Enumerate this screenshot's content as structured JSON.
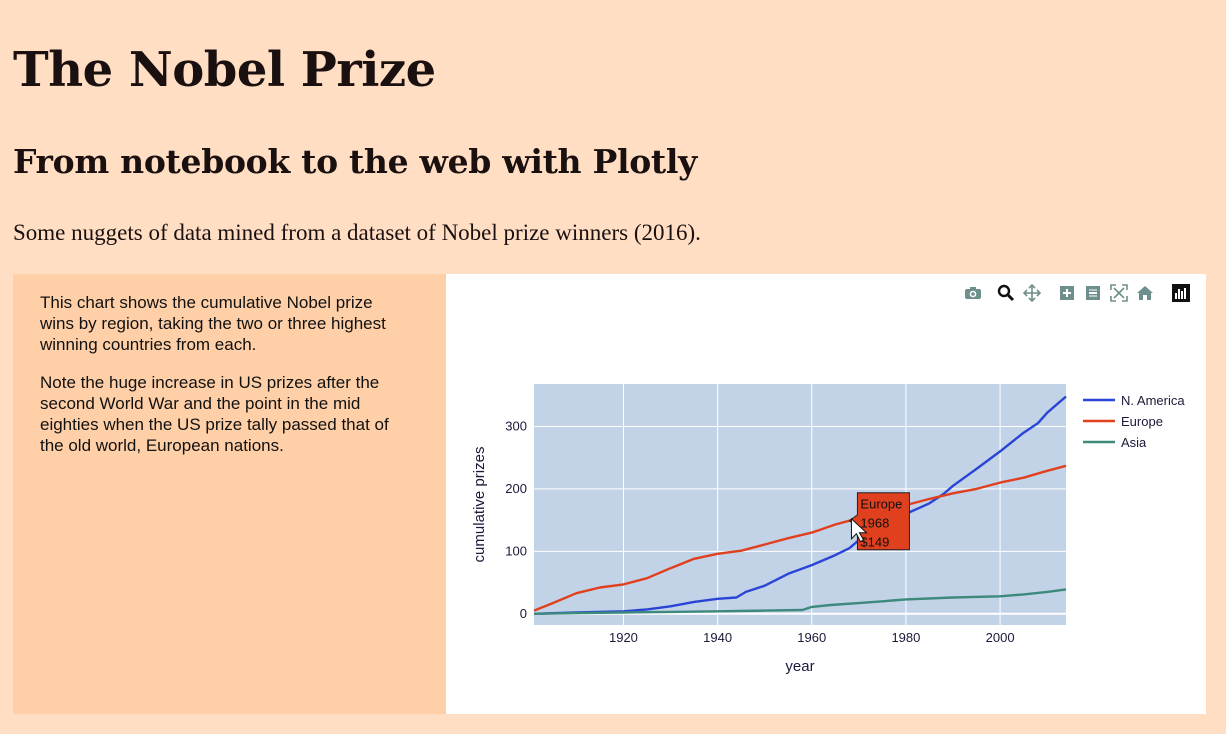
{
  "header": {
    "title": "The Nobel Prize",
    "subtitle": "From notebook to the web with Plotly",
    "intro": "Some nuggets of data mined from a dataset of Nobel prize winners (2016)."
  },
  "sidebar": {
    "paragraphs": [
      "This chart shows the cumulative Nobel prize wins by region, taking the two or three highest winning countries from each.",
      "Note the huge increase in US prizes after the second World War and the point in the mid eighties when the US prize tally passed that of the old world, European nations."
    ]
  },
  "modebar": {
    "buttons": [
      "camera-icon",
      "zoom-icon",
      "pan-icon",
      "zoom-in-icon",
      "zoom-out-icon",
      "autoscale-icon",
      "home-icon",
      "plotly-logo-icon"
    ]
  },
  "tooltip": {
    "series": "Europe",
    "year": "1968",
    "value": "149"
  },
  "chart_data": {
    "type": "line",
    "title": "",
    "xlabel": "year",
    "ylabel": "cumulative prizes",
    "xlim": [
      1901,
      2014
    ],
    "ylim": [
      -18,
      368
    ],
    "xticks": [
      1920,
      1940,
      1960,
      1980,
      2000
    ],
    "yticks": [
      0,
      100,
      200,
      300
    ],
    "grid": true,
    "legend": "top-right",
    "series": [
      {
        "name": "N. America",
        "color": "#2a44d6",
        "x": [
          1901,
          1910,
          1920,
          1925,
          1930,
          1935,
          1940,
          1944,
          1946,
          1950,
          1955,
          1960,
          1965,
          1968,
          1970,
          1975,
          1980,
          1985,
          1988,
          1990,
          1995,
          2000,
          2005,
          2008,
          2010,
          2014
        ],
        "y": [
          0,
          2,
          4,
          7,
          12,
          19,
          24,
          26,
          35,
          45,
          64,
          78,
          94,
          105,
          118,
          140,
          160,
          177,
          192,
          205,
          232,
          260,
          290,
          305,
          322,
          348
        ]
      },
      {
        "name": "Europe",
        "color": "#e0401e",
        "x": [
          1901,
          1905,
          1910,
          1915,
          1920,
          1925,
          1930,
          1935,
          1940,
          1945,
          1950,
          1955,
          1960,
          1965,
          1968,
          1970,
          1975,
          1980,
          1985,
          1990,
          1995,
          2000,
          2005,
          2010,
          2014
        ],
        "y": [
          5,
          17,
          33,
          42,
          47,
          57,
          73,
          88,
          96,
          101,
          111,
          121,
          130,
          143,
          149,
          153,
          163,
          174,
          184,
          193,
          200,
          210,
          218,
          229,
          237
        ]
      },
      {
        "name": "Asia",
        "color": "#3d8a7c",
        "x": [
          1901,
          1910,
          1920,
          1930,
          1940,
          1950,
          1958,
          1960,
          1964,
          1970,
          1975,
          1980,
          1990,
          2000,
          2005,
          2010,
          2014
        ],
        "y": [
          0,
          1,
          2,
          3,
          4,
          5,
          6,
          11,
          14,
          17,
          20,
          23,
          26,
          28,
          31,
          35,
          39
        ]
      }
    ]
  }
}
